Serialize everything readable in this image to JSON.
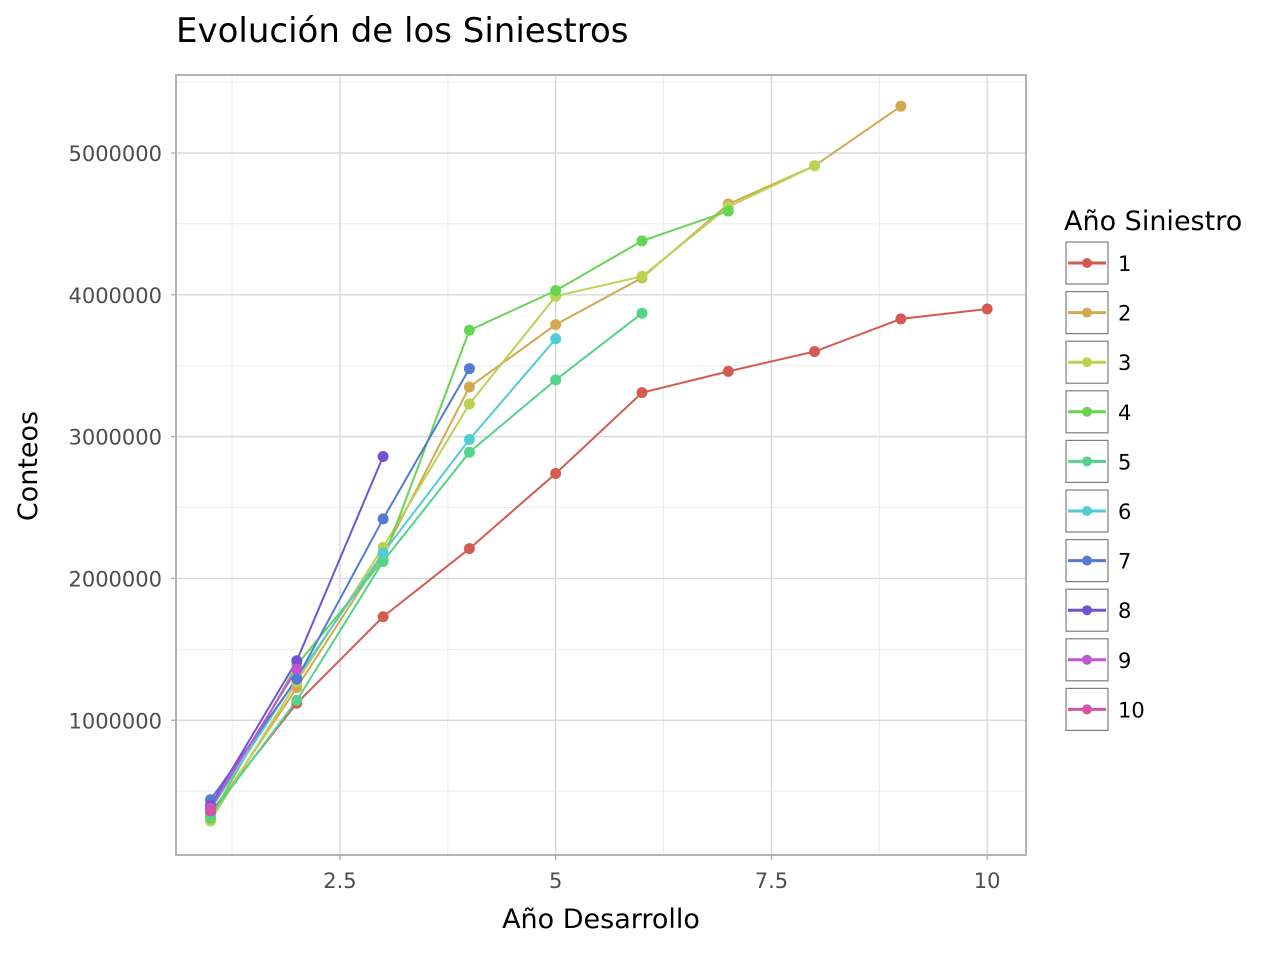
{
  "chart_data": {
    "type": "line",
    "title": "Evolución de los Siniestros",
    "xlabel": "Año Desarrollo",
    "ylabel": "Conteos",
    "xlim": [
      0.6,
      10.45
    ],
    "ylim": [
      50000,
      5550000
    ],
    "x_ticks": [
      2.5,
      5,
      7.5,
      10
    ],
    "x_tick_labels": [
      "2.5",
      "5",
      "7.5",
      "10"
    ],
    "x_minor_ticks": [
      1.25,
      3.75,
      6.25,
      8.75
    ],
    "y_ticks": [
      1000000,
      2000000,
      3000000,
      4000000,
      5000000
    ],
    "y_tick_labels": [
      "1000000",
      "2000000",
      "3000000",
      "4000000",
      "5000000"
    ],
    "y_minor_ticks": [
      500000,
      1500000,
      2500000,
      3500000,
      4500000,
      5500000
    ],
    "grid": true,
    "legend": {
      "title": "Año Siniestro",
      "position": "right"
    },
    "series": [
      {
        "name": "1",
        "color": "#d45b51",
        "x": [
          1,
          2,
          3,
          4,
          5,
          6,
          7,
          8,
          9,
          10
        ],
        "values": [
          350000,
          1120000,
          1730000,
          2210000,
          2740000,
          3310000,
          3460000,
          3600000,
          3830000,
          3900000
        ]
      },
      {
        "name": "2",
        "color": "#d4a853",
        "x": [
          1,
          2,
          3,
          4,
          5,
          6,
          7,
          8,
          9
        ],
        "values": [
          320000,
          1230000,
          2170000,
          3350000,
          3790000,
          4120000,
          4640000,
          4910000,
          5330000
        ]
      },
      {
        "name": "3",
        "color": "#b9d453",
        "x": [
          1,
          2,
          3,
          4,
          5,
          6,
          7,
          8
        ],
        "values": [
          290000,
          1270000,
          2220000,
          3230000,
          3990000,
          4130000,
          4620000,
          4910000
        ]
      },
      {
        "name": "4",
        "color": "#68d453",
        "x": [
          1,
          2,
          3,
          4,
          5,
          6,
          7
        ],
        "values": [
          310000,
          1390000,
          2130000,
          3750000,
          4030000,
          4380000,
          4590000
        ]
      },
      {
        "name": "5",
        "color": "#53d48a",
        "x": [
          1,
          2,
          3,
          4,
          5,
          6
        ],
        "values": [
          330000,
          1140000,
          2120000,
          2890000,
          3400000,
          3870000
        ]
      },
      {
        "name": "6",
        "color": "#53cbd4",
        "x": [
          1,
          2,
          3,
          4,
          5
        ],
        "values": [
          370000,
          1300000,
          2180000,
          2980000,
          3690000
        ]
      },
      {
        "name": "7",
        "color": "#537ad4",
        "x": [
          1,
          2,
          3,
          4
        ],
        "values": [
          440000,
          1290000,
          2420000,
          3480000
        ]
      },
      {
        "name": "8",
        "color": "#7353d4",
        "x": [
          1,
          2,
          3
        ],
        "values": [
          400000,
          1420000,
          2860000
        ]
      },
      {
        "name": "9",
        "color": "#c453d4",
        "x": [
          1,
          2
        ],
        "values": [
          380000,
          1360000
        ]
      },
      {
        "name": "10",
        "color": "#d453a2",
        "x": [
          1
        ],
        "values": [
          360000
        ]
      }
    ]
  }
}
